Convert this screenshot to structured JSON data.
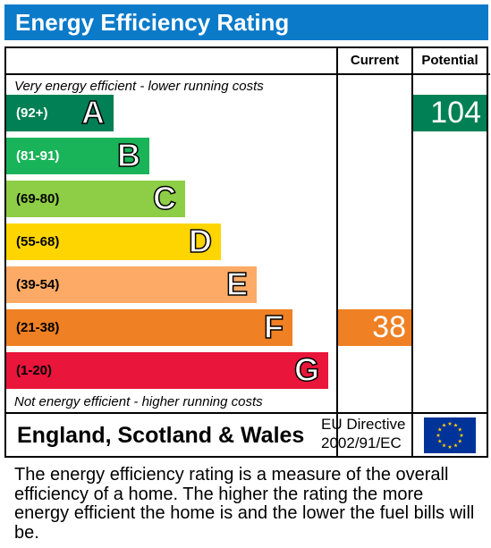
{
  "header": {
    "title": "Energy Efficiency Rating"
  },
  "columns": {
    "current": "Current",
    "potential": "Potential"
  },
  "notes": {
    "top": "Very energy efficient - lower running costs",
    "bottom": "Not energy efficient - higher running costs"
  },
  "chart_data": {
    "type": "bar",
    "categories": [
      "A",
      "B",
      "C",
      "D",
      "E",
      "F",
      "G"
    ],
    "bands": [
      {
        "letter": "A",
        "range": "(92+)",
        "min": 92,
        "max": null,
        "color": "#008054",
        "range_color": "#ffffff"
      },
      {
        "letter": "B",
        "range": "(81-91)",
        "min": 81,
        "max": 91,
        "color": "#19b459",
        "range_color": "#ffffff"
      },
      {
        "letter": "C",
        "range": "(69-80)",
        "min": 69,
        "max": 80,
        "color": "#8dce46",
        "range_color": "#000000"
      },
      {
        "letter": "D",
        "range": "(55-68)",
        "min": 55,
        "max": 68,
        "color": "#ffd500",
        "range_color": "#000000"
      },
      {
        "letter": "E",
        "range": "(39-54)",
        "min": 39,
        "max": 54,
        "color": "#fcaa65",
        "range_color": "#000000"
      },
      {
        "letter": "F",
        "range": "(21-38)",
        "min": 21,
        "max": 38,
        "color": "#ef8023",
        "range_color": "#000000"
      },
      {
        "letter": "G",
        "range": "(1-20)",
        "min": 1,
        "max": 20,
        "color": "#e9153b",
        "range_color": "#000000"
      }
    ],
    "current": {
      "value": 38,
      "band": "F",
      "color": "#ef8023"
    },
    "potential": {
      "value": 104,
      "band": "A",
      "color": "#008054"
    }
  },
  "footer": {
    "region": "England, Scotland & Wales",
    "directive_line1": "EU Directive",
    "directive_line2": "2002/91/EC",
    "flag_icon": "eu-flag-icon"
  },
  "description": "The energy efficiency rating is a measure of the overall efficiency of a home. The higher the rating the more energy efficient the home is and the lower the fuel bills will be."
}
